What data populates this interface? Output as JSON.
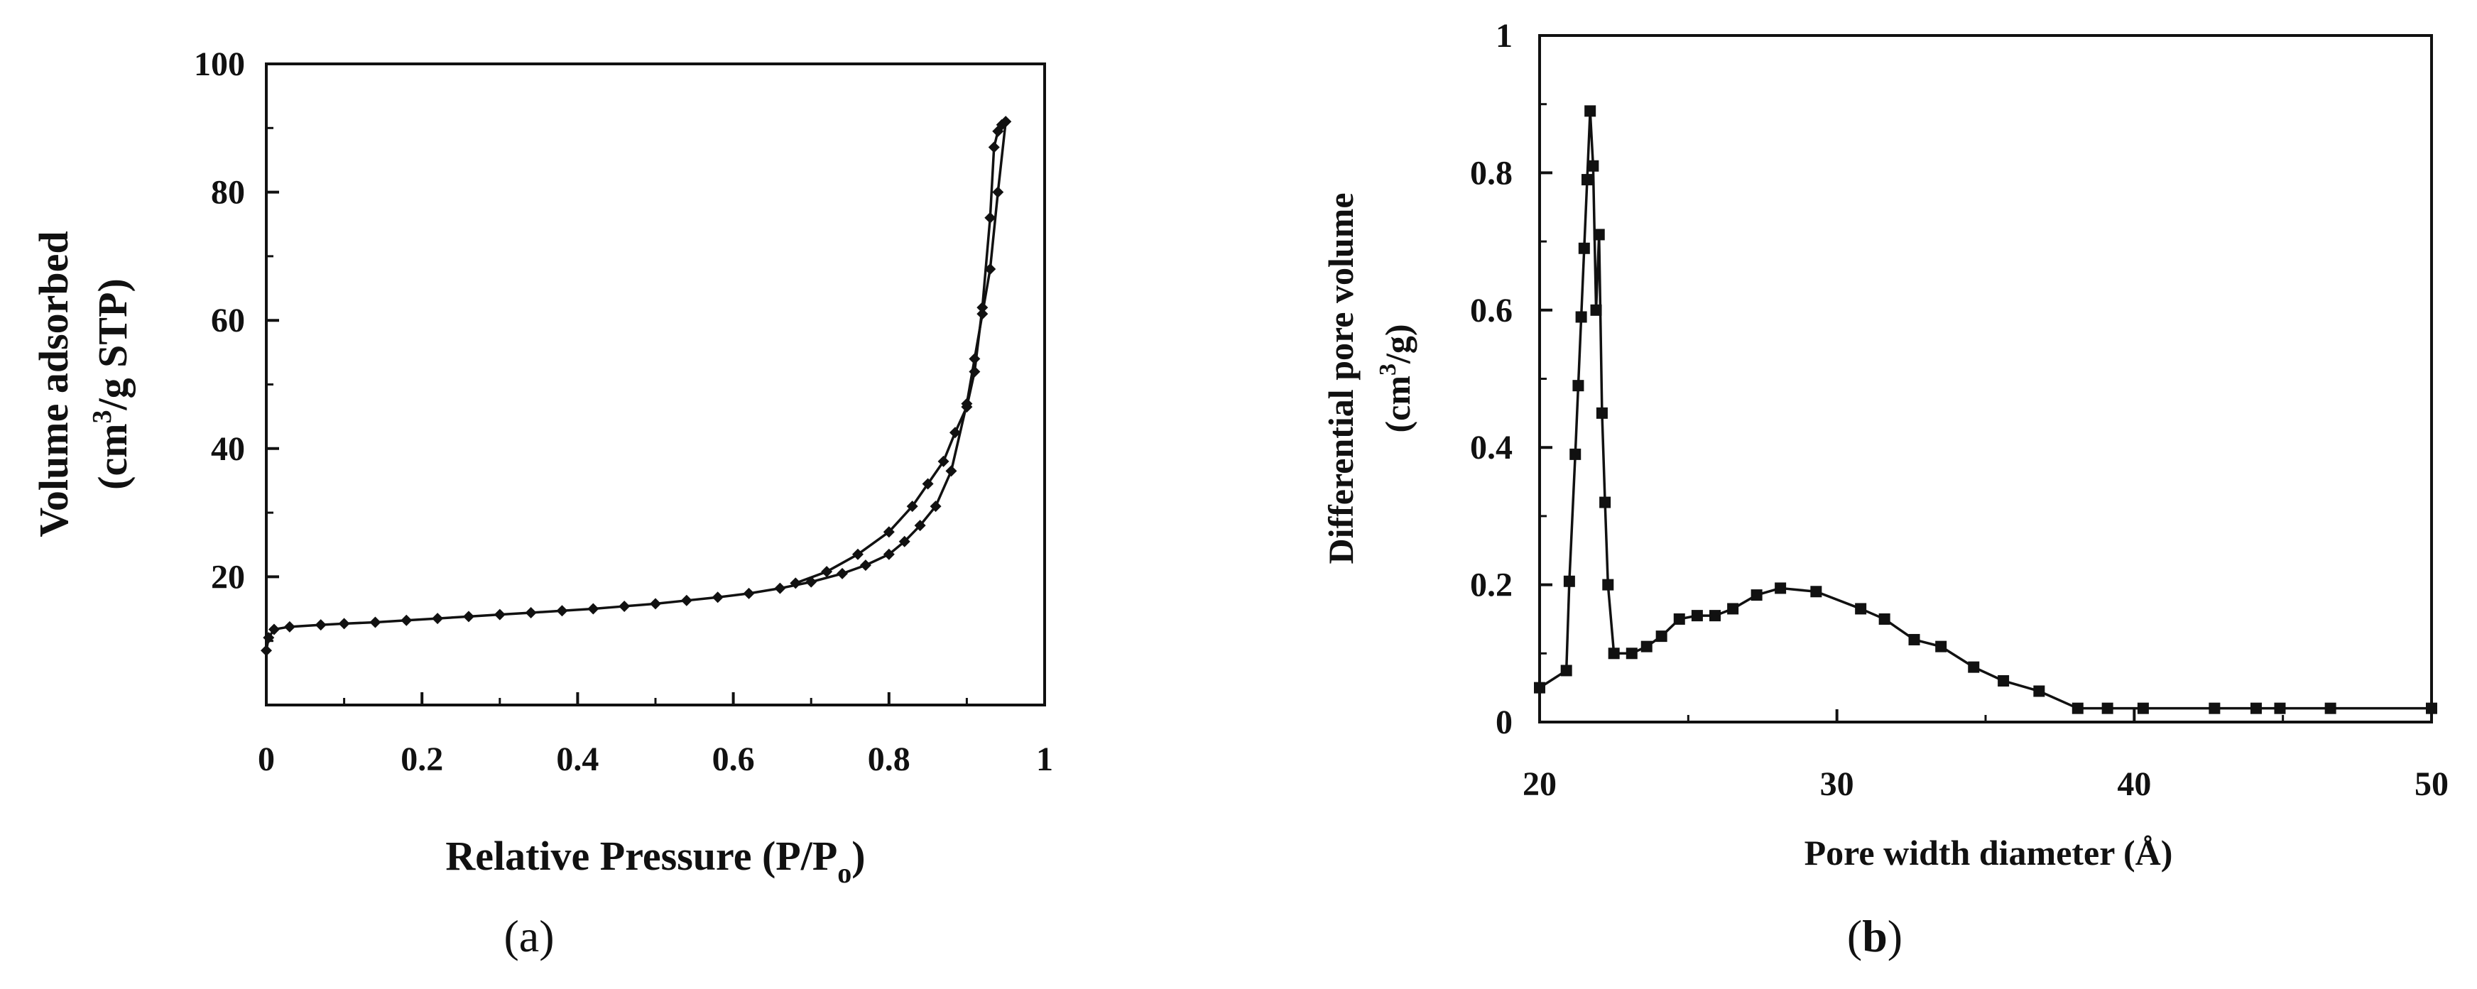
{
  "chart_data": [
    {
      "type": "line",
      "panel_label_open": "(",
      "panel_label_letter": "a",
      "panel_label_close": ")",
      "xlabel": "Relative Pressure (P/P",
      "xlabel_sub": "o",
      "xlabel_close": ")",
      "ylabel_line1": "Volume adsorbed",
      "ylabel_line2_pre": "(cm",
      "ylabel_line2_sup": "3",
      "ylabel_line2_post": "/g STP)",
      "xlim": [
        0,
        1
      ],
      "ylim": [
        0,
        100
      ],
      "xticks": [
        "0",
        "0.2",
        "0.4",
        "0.6",
        "0.8",
        "1"
      ],
      "yticks": [
        "20",
        "40",
        "60",
        "80",
        "100"
      ],
      "xtick_values": [
        0,
        0.2,
        0.4,
        0.6,
        0.8,
        1
      ],
      "ytick_values": [
        20,
        40,
        60,
        80,
        100
      ],
      "grid": false,
      "marker": "diamond",
      "color": "#111111",
      "series": [
        {
          "x": [
            0.0,
            0.003,
            0.01,
            0.03,
            0.07,
            0.1,
            0.14,
            0.18,
            0.22,
            0.26,
            0.3,
            0.34,
            0.38,
            0.42,
            0.46,
            0.5,
            0.54,
            0.58,
            0.62,
            0.66,
            0.7,
            0.74,
            0.77,
            0.8,
            0.82,
            0.84,
            0.86,
            0.88,
            0.9,
            0.91,
            0.92,
            0.93,
            0.94,
            0.95
          ],
          "y": [
            8.5,
            10.5,
            11.8,
            12.2,
            12.5,
            12.7,
            12.9,
            13.2,
            13.5,
            13.8,
            14.1,
            14.4,
            14.7,
            15.0,
            15.4,
            15.8,
            16.3,
            16.8,
            17.4,
            18.2,
            19.2,
            20.5,
            21.8,
            23.5,
            25.5,
            28.0,
            31.0,
            36.5,
            47.0,
            54.0,
            61.0,
            68.0,
            80.0,
            91.0
          ]
        },
        {
          "x": [
            0.95,
            0.945,
            0.94,
            0.935,
            0.93,
            0.92,
            0.91,
            0.9,
            0.885,
            0.87,
            0.85,
            0.83,
            0.8,
            0.76,
            0.72,
            0.68
          ],
          "y": [
            91.0,
            90.5,
            89.5,
            87.0,
            76.0,
            62.0,
            52.0,
            46.5,
            42.5,
            38.0,
            34.5,
            31.0,
            27.0,
            23.5,
            20.8,
            19.0
          ]
        }
      ]
    },
    {
      "type": "line",
      "panel_label_open": "(",
      "panel_label_letter": "b",
      "panel_label_close": ")",
      "xlabel": "Pore width diameter (Å)",
      "ylabel_line1": "Differential pore volume",
      "ylabel_line2_pre": "(cm",
      "ylabel_line2_sup": "3",
      "ylabel_line2_post": "/g)",
      "xlim": [
        20,
        50
      ],
      "ylim": [
        0,
        1
      ],
      "xticks": [
        "20",
        "30",
        "40",
        "50"
      ],
      "yticks": [
        "0",
        "0.2",
        "0.4",
        "0.6",
        "0.8",
        "1"
      ],
      "xtick_values": [
        20,
        30,
        40,
        50
      ],
      "ytick_values": [
        0,
        0.2,
        0.4,
        0.6,
        0.8,
        1
      ],
      "grid": false,
      "marker": "square",
      "color": "#111111",
      "series": [
        {
          "x": [
            20.0,
            20.9,
            21.0,
            21.2,
            21.3,
            21.4,
            21.5,
            21.6,
            21.7,
            21.8,
            21.9,
            22.0,
            22.1,
            22.2,
            22.3,
            22.5,
            23.1,
            23.6,
            24.1,
            24.7,
            25.3,
            25.9,
            26.5,
            27.3,
            28.1,
            29.3,
            30.8,
            31.6,
            32.6,
            33.5,
            34.6,
            35.6,
            36.8,
            38.1,
            39.1,
            40.3,
            42.7,
            44.1,
            44.9,
            46.6,
            50.0
          ],
          "y": [
            0.05,
            0.075,
            0.205,
            0.39,
            0.49,
            0.59,
            0.69,
            0.79,
            0.89,
            0.81,
            0.6,
            0.71,
            0.45,
            0.32,
            0.2,
            0.1,
            0.1,
            0.11,
            0.125,
            0.15,
            0.155,
            0.155,
            0.165,
            0.185,
            0.195,
            0.19,
            0.165,
            0.15,
            0.12,
            0.11,
            0.08,
            0.06,
            0.045,
            0.02,
            0.02,
            0.02,
            0.02,
            0.02,
            0.02,
            0.02,
            0.02
          ]
        }
      ]
    }
  ]
}
